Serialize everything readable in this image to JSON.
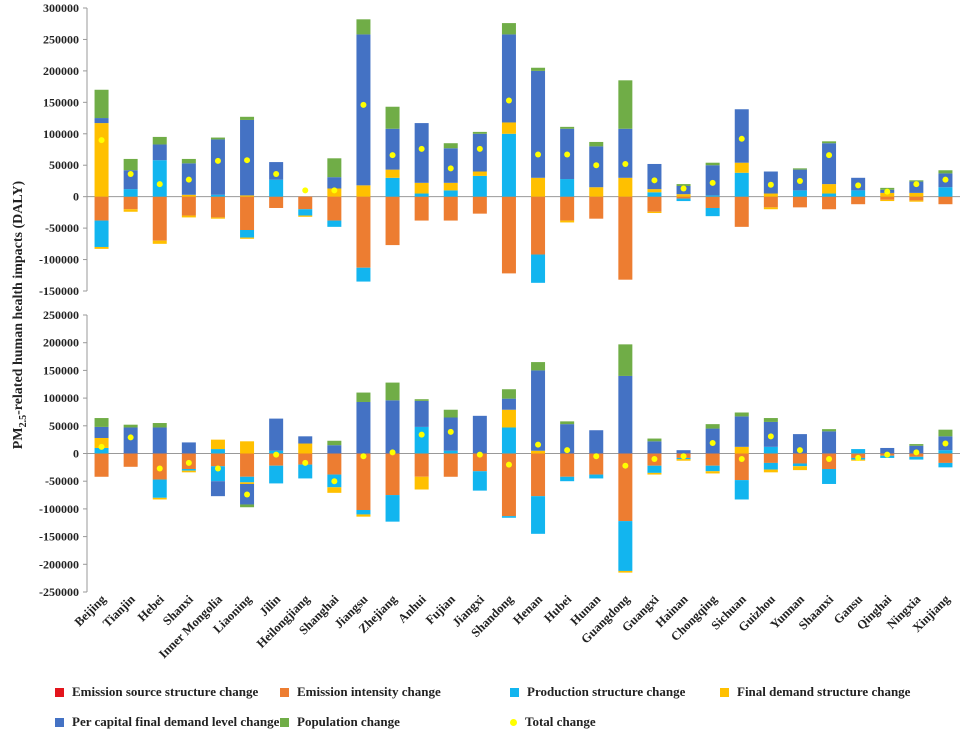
{
  "chart_data": {
    "type": "bar",
    "stacked": true,
    "ylabel": "PM2.5-related human health impacts (DALY)",
    "ylabel_parts": {
      "pre": "PM",
      "sub": "2.5",
      "post": "-related human health impacts (DALY)"
    },
    "categories": [
      "Beijing",
      "Tianjin",
      "Hebei",
      "Shanxi",
      "Inner Mongolia",
      "Liaoning",
      "Jilin",
      "Heilongjiang",
      "Shanghai",
      "Jiangsu",
      "Zhejiang",
      "Anhui",
      "Fujian",
      "Jiangxi",
      "Shandong",
      "Henan",
      "Hubei",
      "Hunan",
      "Guangdong",
      "Guangxi",
      "Hainan",
      "Chongqing",
      "Sichuan",
      "Guizhou",
      "Yunnan",
      "Shaanxi",
      "Gansu",
      "Qinghai",
      "Ningxia",
      "Xinjiang"
    ],
    "legend": [
      {
        "name": "Emission source structure change",
        "color": "#e3141c",
        "marker": "square"
      },
      {
        "name": "Emission intensity change",
        "color": "#ed7d31",
        "marker": "square"
      },
      {
        "name": "Production structure change",
        "color": "#12b5ef",
        "marker": "square"
      },
      {
        "name": "Final demand structure change",
        "color": "#ffc000",
        "marker": "square"
      },
      {
        "name": "Per capital final demand level change",
        "color": "#4472c4",
        "marker": "square"
      },
      {
        "name": "Population change",
        "color": "#70ad47",
        "marker": "square"
      },
      {
        "name": "Total change",
        "color": "#ffff00",
        "marker": "dot"
      }
    ],
    "panels": [
      {
        "id": "top",
        "ylim": [
          -150000,
          300000
        ],
        "yticks": [
          -150000,
          -100000,
          -50000,
          0,
          50000,
          100000,
          150000,
          200000,
          250000,
          300000
        ],
        "series": [
          {
            "name": "Emission source structure change",
            "values": [
              0,
              0,
              0,
              0,
              0,
              0,
              0,
              0,
              0,
              0,
              0,
              0,
              0,
              0,
              0,
              0,
              0,
              0,
              0,
              0,
              0,
              0,
              0,
              0,
              0,
              0,
              0,
              0,
              0,
              0
            ]
          },
          {
            "name": "Emission intensity change",
            "values": [
              -38000,
              -20000,
              -70000,
              -30000,
              -33000,
              -53000,
              -18000,
              -20000,
              -38000,
              -113000,
              -77000,
              -38000,
              -38000,
              -27000,
              -122000,
              -92000,
              -38000,
              -35000,
              -132000,
              -24000,
              -3000,
              -18000,
              -48000,
              -17000,
              -17000,
              -20000,
              -12000,
              -5000,
              -6000,
              -12000
            ]
          },
          {
            "name": "Production structure change",
            "values": [
              -42000,
              0,
              0,
              0,
              0,
              -12000,
              0,
              -10000,
              -10000,
              -22000,
              0,
              0,
              0,
              0,
              0,
              -45000,
              0,
              0,
              0,
              0,
              -4000,
              -13000,
              0,
              0,
              0,
              0,
              0,
              0,
              0,
              0
            ]
          },
          {
            "name": "Final demand structure change",
            "values": [
              -3000,
              -4000,
              -5000,
              -3000,
              -2000,
              -2000,
              0,
              -2000,
              0,
              0,
              0,
              0,
              0,
              0,
              0,
              0,
              -3000,
              0,
              0,
              -2000,
              0,
              0,
              0,
              -3000,
              0,
              0,
              0,
              -2000,
              -2000,
              0
            ]
          },
          {
            "name": "Per capital final demand level change",
            "values": [
              8000,
              30000,
              25000,
              50000,
              88000,
              120000,
              28000,
              0,
              18000,
              240000,
              65000,
              95000,
              55000,
              60000,
              140000,
              170000,
              80000,
              65000,
              78000,
              40000,
              13000,
              48000,
              85000,
              35000,
              33000,
              65000,
              20000,
              5000,
              18000,
              22000
            ]
          },
          {
            "name": "Population change",
            "values": [
              45000,
              18000,
              12000,
              7000,
              3000,
              5000,
              0,
              0,
              30000,
              24000,
              35000,
              0,
              8000,
              3000,
              18000,
              5000,
              3000,
              7000,
              77000,
              0,
              3000,
              4000,
              0,
              0,
              2000,
              3000,
              0,
              3000,
              2000,
              5000
            ]
          },
          {
            "name": "Production structure change (positive)",
            "values": [
              0,
              12000,
              58000,
              0,
              3000,
              0,
              27000,
              0,
              0,
              0,
              30000,
              5000,
              10000,
              33000,
              100000,
              0,
              28000,
              0,
              0,
              7000,
              0,
              2000,
              38000,
              0,
              10000,
              5000,
              10000,
              0,
              0,
              15000
            ]
          },
          {
            "name": "Final demand structure change (positive)",
            "values": [
              117000,
              0,
              0,
              3000,
              0,
              2000,
              0,
              0,
              13000,
              18000,
              13000,
              17000,
              12000,
              7000,
              18000,
              30000,
              0,
              15000,
              30000,
              5000,
              4000,
              0,
              16000,
              5000,
              0,
              15000,
              0,
              6000,
              6000,
              0
            ]
          }
        ],
        "total": [
          90000,
          36000,
          20000,
          27000,
          57000,
          58000,
          36000,
          10000,
          10000,
          146000,
          66000,
          76000,
          45000,
          76000,
          153000,
          67000,
          67000,
          50000,
          52000,
          26000,
          13000,
          22000,
          92000,
          19000,
          25000,
          66000,
          18000,
          8000,
          20000,
          27000
        ]
      },
      {
        "id": "bottom",
        "ylim": [
          -250000,
          250000
        ],
        "yticks": [
          -250000,
          -200000,
          -150000,
          -100000,
          -50000,
          0,
          50000,
          100000,
          150000,
          200000,
          250000
        ],
        "series": [
          {
            "name": "Emission source structure change",
            "values": [
              0,
              0,
              0,
              0,
              0,
              0,
              0,
              0,
              0,
              0,
              0,
              0,
              0,
              0,
              0,
              0,
              0,
              0,
              0,
              0,
              0,
              0,
              0,
              0,
              0,
              0,
              0,
              0,
              0,
              0
            ]
          },
          {
            "name": "Emission intensity change",
            "values": [
              -42000,
              -24000,
              -47000,
              -28000,
              -23000,
              -42000,
              -22000,
              -20000,
              -38000,
              -102000,
              -75000,
              -42000,
              -42000,
              -32000,
              -113000,
              -77000,
              -42000,
              -38000,
              -122000,
              -22000,
              -8000,
              -22000,
              -48000,
              -17000,
              -18000,
              -28000,
              -8000,
              -4000,
              -6000,
              -17000
            ]
          },
          {
            "name": "Production structure change",
            "values": [
              0,
              0,
              -33000,
              -3000,
              -27000,
              -10000,
              -32000,
              -25000,
              -23000,
              -8000,
              -48000,
              0,
              0,
              -35000,
              -3000,
              -68000,
              -8000,
              -7000,
              -90000,
              -13000,
              -2000,
              -10000,
              -35000,
              -12000,
              -5000,
              -27000,
              -3000,
              -4000,
              -5000,
              -8000
            ]
          },
          {
            "name": "Final demand structure change",
            "values": [
              0,
              0,
              -3000,
              -3000,
              0,
              -3000,
              0,
              0,
              -10000,
              -4000,
              0,
              -23000,
              0,
              0,
              0,
              0,
              0,
              0,
              -3000,
              -3000,
              -3000,
              -4000,
              0,
              -5000,
              -7000,
              0,
              -2000,
              0,
              0,
              0
            ]
          },
          {
            "name": "Per capital final demand level change",
            "values": [
              20000,
              47000,
              47000,
              20000,
              -27000,
              -37000,
              58000,
              13000,
              15000,
              93000,
              96000,
              47000,
              60000,
              68000,
              20000,
              145000,
              53000,
              42000,
              140000,
              22000,
              6000,
              45000,
              55000,
              45000,
              35000,
              40000,
              0,
              10000,
              14000,
              25000
            ]
          },
          {
            "name": "Population change",
            "values": [
              16000,
              5000,
              8000,
              0,
              0,
              -5000,
              0,
              0,
              8000,
              17000,
              32000,
              3000,
              14000,
              0,
              17000,
              15000,
              5000,
              0,
              57000,
              5000,
              0,
              8000,
              7000,
              7000,
              0,
              4000,
              0,
              0,
              3000,
              12000
            ]
          },
          {
            "name": "Production structure change (positive)",
            "values": [
              10000,
              0,
              0,
              0,
              8000,
              0,
              5000,
              0,
              0,
              0,
              0,
              48000,
              5000,
              0,
              47000,
              0,
              0,
              0,
              0,
              0,
              0,
              0,
              0,
              12000,
              0,
              0,
              8000,
              0,
              0,
              6000
            ]
          },
          {
            "name": "Final demand structure change (positive)",
            "values": [
              18000,
              0,
              0,
              0,
              17000,
              22000,
              0,
              18000,
              0,
              0,
              0,
              0,
              0,
              0,
              32000,
              5000,
              0,
              0,
              0,
              0,
              0,
              0,
              12000,
              0,
              0,
              0,
              0,
              0,
              0,
              0
            ]
          }
        ],
        "total": [
          12000,
          29000,
          -27000,
          -17000,
          -27000,
          -74000,
          -2000,
          -17000,
          -50000,
          -5000,
          2000,
          34000,
          39000,
          -2000,
          -20000,
          16000,
          6000,
          -5000,
          -22000,
          -10000,
          -5000,
          19000,
          -10000,
          31000,
          6000,
          -10000,
          -8000,
          -2000,
          2000,
          18000
        ]
      }
    ]
  }
}
